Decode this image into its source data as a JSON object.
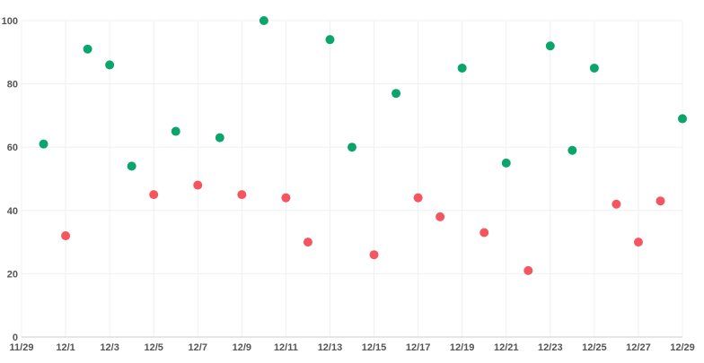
{
  "chart_data": {
    "type": "scatter",
    "title": "",
    "xlabel": "",
    "ylabel": "",
    "ylim": [
      0,
      100
    ],
    "yticks": [
      0,
      20,
      40,
      60,
      80,
      100
    ],
    "xlim": [
      "2023-11-29",
      "2023-12-29"
    ],
    "xtick_labels": [
      "11/29",
      "12/1",
      "12/3",
      "12/5",
      "12/7",
      "12/9",
      "12/11",
      "12/13",
      "12/15",
      "12/17",
      "12/19",
      "12/21",
      "12/23",
      "12/25",
      "12/27",
      "12/29"
    ],
    "grid": true,
    "colors": {
      "high": "#0aa56b",
      "low": "#f5555f"
    },
    "color_rule": "green when value >= 50, red below",
    "points": [
      {
        "x": "11/30",
        "y": 61
      },
      {
        "x": "12/1",
        "y": 32
      },
      {
        "x": "12/2",
        "y": 91
      },
      {
        "x": "12/3",
        "y": 86
      },
      {
        "x": "12/4",
        "y": 54
      },
      {
        "x": "12/5",
        "y": 45
      },
      {
        "x": "12/6",
        "y": 65
      },
      {
        "x": "12/7",
        "y": 48
      },
      {
        "x": "12/8",
        "y": 63
      },
      {
        "x": "12/9",
        "y": 45
      },
      {
        "x": "12/10",
        "y": 100
      },
      {
        "x": "12/11",
        "y": 44
      },
      {
        "x": "12/12",
        "y": 30
      },
      {
        "x": "12/13",
        "y": 94
      },
      {
        "x": "12/14",
        "y": 60
      },
      {
        "x": "12/15",
        "y": 26
      },
      {
        "x": "12/16",
        "y": 77
      },
      {
        "x": "12/17",
        "y": 44
      },
      {
        "x": "12/18",
        "y": 38
      },
      {
        "x": "12/19",
        "y": 85
      },
      {
        "x": "12/20",
        "y": 33
      },
      {
        "x": "12/21",
        "y": 55
      },
      {
        "x": "12/22",
        "y": 21
      },
      {
        "x": "12/23",
        "y": 92
      },
      {
        "x": "12/24",
        "y": 59
      },
      {
        "x": "12/25",
        "y": 85
      },
      {
        "x": "12/26",
        "y": 42
      },
      {
        "x": "12/27",
        "y": 30
      },
      {
        "x": "12/28",
        "y": 43
      },
      {
        "x": "12/29",
        "y": 69
      }
    ]
  }
}
